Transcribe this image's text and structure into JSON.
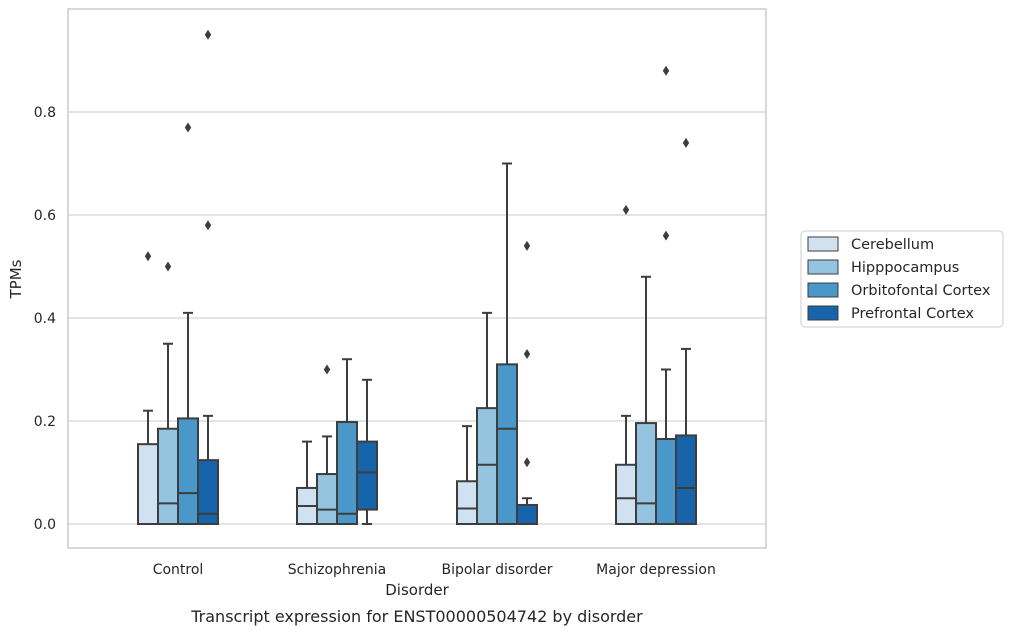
{
  "chart_data": {
    "type": "box",
    "title": "",
    "caption": "Transcript expression for ENST00000504742 by disorder",
    "xlabel": "Disorder",
    "ylabel": "TPMs",
    "ylim": [
      -0.045,
      0.98
    ],
    "yticks": [
      "0.0",
      "0.2",
      "0.4",
      "0.6",
      "0.8"
    ],
    "grid": "horizontal",
    "legend_position": "right",
    "categories": [
      "Control",
      "Schizophrenia",
      "Bipolar disorder",
      "Major depression"
    ],
    "series": [
      {
        "name": "Cerebellum",
        "color": "#d0e1f2",
        "boxes": [
          {
            "q1": 0.0,
            "median": 0.0,
            "q3": 0.155,
            "whisker_low": 0.0,
            "whisker_high": 0.22,
            "outliers": [
              0.52
            ]
          },
          {
            "q1": 0.0,
            "median": 0.035,
            "q3": 0.07,
            "whisker_low": 0.0,
            "whisker_high": 0.16,
            "outliers": []
          },
          {
            "q1": 0.0,
            "median": 0.03,
            "q3": 0.083,
            "whisker_low": 0.0,
            "whisker_high": 0.19,
            "outliers": []
          },
          {
            "q1": 0.0,
            "median": 0.05,
            "q3": 0.115,
            "whisker_low": 0.0,
            "whisker_high": 0.21,
            "outliers": [
              0.61
            ]
          }
        ]
      },
      {
        "name": "Hipppocampus",
        "color": "#94c4df",
        "boxes": [
          {
            "q1": 0.0,
            "median": 0.04,
            "q3": 0.185,
            "whisker_low": 0.0,
            "whisker_high": 0.35,
            "outliers": [
              0.5
            ]
          },
          {
            "q1": 0.0,
            "median": 0.028,
            "q3": 0.097,
            "whisker_low": 0.0,
            "whisker_high": 0.17,
            "outliers": [
              0.3
            ]
          },
          {
            "q1": 0.0,
            "median": 0.115,
            "q3": 0.225,
            "whisker_low": 0.0,
            "whisker_high": 0.41,
            "outliers": []
          },
          {
            "q1": 0.0,
            "median": 0.04,
            "q3": 0.196,
            "whisker_low": 0.0,
            "whisker_high": 0.48,
            "outliers": []
          }
        ]
      },
      {
        "name": "Orbitofontal Cortex",
        "color": "#4a98c9",
        "boxes": [
          {
            "q1": 0.0,
            "median": 0.06,
            "q3": 0.205,
            "whisker_low": 0.0,
            "whisker_high": 0.41,
            "outliers": [
              0.77
            ]
          },
          {
            "q1": 0.0,
            "median": 0.02,
            "q3": 0.198,
            "whisker_low": 0.0,
            "whisker_high": 0.32,
            "outliers": []
          },
          {
            "q1": 0.0,
            "median": 0.185,
            "q3": 0.31,
            "whisker_low": 0.0,
            "whisker_high": 0.7,
            "outliers": []
          },
          {
            "q1": 0.0,
            "median": 0.0,
            "q3": 0.165,
            "whisker_low": 0.0,
            "whisker_high": 0.3,
            "outliers": [
              0.56,
              0.88
            ]
          }
        ]
      },
      {
        "name": "Prefrontal Cortex",
        "color": "#1764ab",
        "boxes": [
          {
            "q1": 0.0,
            "median": 0.02,
            "q3": 0.124,
            "whisker_low": 0.0,
            "whisker_high": 0.21,
            "outliers": [
              0.58,
              0.95
            ]
          },
          {
            "q1": 0.028,
            "median": 0.1,
            "q3": 0.16,
            "whisker_low": 0.0,
            "whisker_high": 0.28,
            "outliers": []
          },
          {
            "q1": 0.0,
            "median": 0.0,
            "q3": 0.037,
            "whisker_low": 0.0,
            "whisker_high": 0.05,
            "outliers": [
              0.12,
              0.33,
              0.54
            ]
          },
          {
            "q1": 0.0,
            "median": 0.07,
            "q3": 0.172,
            "whisker_low": 0.0,
            "whisker_high": 0.34,
            "outliers": [
              0.74
            ]
          }
        ]
      }
    ]
  }
}
